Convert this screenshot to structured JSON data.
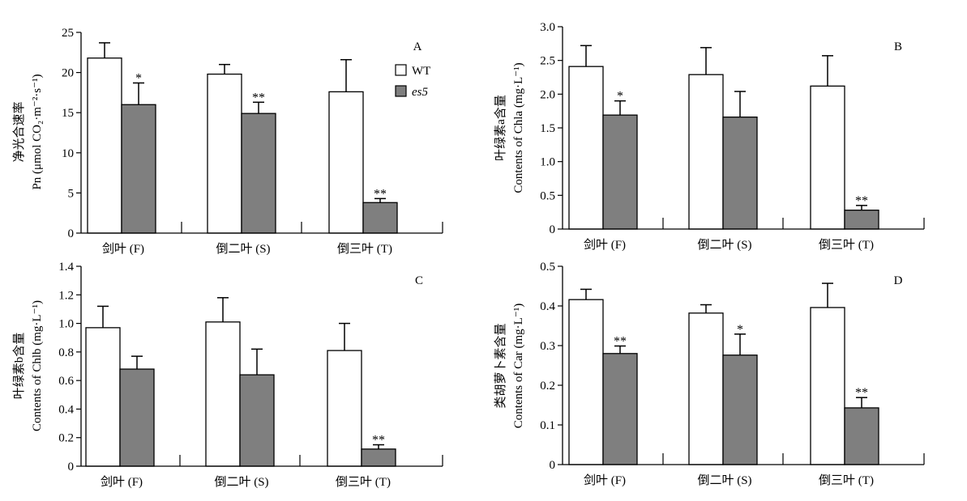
{
  "legend": {
    "wt": "WT",
    "es5": "es5"
  },
  "colors": {
    "wt_fill": "#ffffff",
    "es5_fill": "#7f7f7f",
    "axis": "#000000"
  },
  "chart_data": [
    {
      "id": "A",
      "type": "bar",
      "panel_label": "A",
      "ylabel_cn": "净光合速率",
      "ylabel_en": "Pn (μmol CO₂·m⁻²·s⁻¹)",
      "categories": [
        "剑叶 (F)",
        "倒二叶 (S)",
        "倒三叶 (T)"
      ],
      "ylim": [
        0,
        25
      ],
      "yticks": [
        0,
        5,
        10,
        15,
        20,
        25
      ],
      "ytick_labels": [
        "0",
        "5",
        "10",
        "15",
        "20",
        "25"
      ],
      "legend_shown": true,
      "legend_placement": "top-right",
      "series": [
        {
          "name": "WT",
          "values": [
            21.8,
            19.8,
            17.6
          ],
          "errors": [
            1.9,
            1.2,
            4.0
          ],
          "marks": [
            "",
            "",
            ""
          ]
        },
        {
          "name": "es5",
          "values": [
            16.0,
            14.9,
            3.8
          ],
          "errors": [
            2.7,
            1.4,
            0.5
          ],
          "marks": [
            "*",
            "**",
            "**"
          ]
        }
      ]
    },
    {
      "id": "B",
      "type": "bar",
      "panel_label": "B",
      "ylabel_cn": "叶绿素a含量",
      "ylabel_en": "Contents of Chla (mg·L⁻¹)",
      "categories": [
        "剑叶 (F)",
        "倒二叶 (S)",
        "倒三叶 (T)"
      ],
      "ylim": [
        0,
        3.0
      ],
      "yticks": [
        0,
        0.5,
        1.0,
        1.5,
        2.0,
        2.5,
        3.0
      ],
      "ytick_labels": [
        "0",
        "0.5",
        "1.0",
        "1.5",
        "2.0",
        "2.5",
        "3.0"
      ],
      "legend_shown": false,
      "series": [
        {
          "name": "WT",
          "values": [
            2.41,
            2.29,
            2.12
          ],
          "errors": [
            0.31,
            0.4,
            0.45
          ],
          "marks": [
            "",
            "",
            ""
          ]
        },
        {
          "name": "es5",
          "values": [
            1.69,
            1.66,
            0.28
          ],
          "errors": [
            0.21,
            0.38,
            0.07
          ],
          "marks": [
            "*",
            "",
            "**"
          ]
        }
      ]
    },
    {
      "id": "C",
      "type": "bar",
      "panel_label": "C",
      "ylabel_cn": "叶绿素b含量",
      "ylabel_en": "Contents of Chlb (mg·L⁻¹)",
      "categories": [
        "剑叶 (F)",
        "倒二叶 (S)",
        "倒三叶 (T)"
      ],
      "ylim": [
        0,
        1.4
      ],
      "yticks": [
        0,
        0.2,
        0.4,
        0.6,
        0.8,
        1.0,
        1.2,
        1.4
      ],
      "ytick_labels": [
        "0",
        "0.2",
        "0.4",
        "0.6",
        "0.8",
        "1.0",
        "1.2",
        "1.4"
      ],
      "legend_shown": false,
      "series": [
        {
          "name": "WT",
          "values": [
            0.97,
            1.01,
            0.81
          ],
          "errors": [
            0.15,
            0.17,
            0.19
          ],
          "marks": [
            "",
            "",
            ""
          ]
        },
        {
          "name": "es5",
          "values": [
            0.68,
            0.64,
            0.12
          ],
          "errors": [
            0.09,
            0.18,
            0.03
          ],
          "marks": [
            "",
            "",
            "**"
          ]
        }
      ]
    },
    {
      "id": "D",
      "type": "bar",
      "panel_label": "D",
      "ylabel_cn": "类胡萝卜素含量",
      "ylabel_en": "Contents of Car (mg·L⁻¹)",
      "categories": [
        "剑叶 (F)",
        "倒二叶 (S)",
        "倒三叶 (T)"
      ],
      "ylim": [
        0,
        0.5
      ],
      "yticks": [
        0,
        0.1,
        0.2,
        0.3,
        0.4,
        0.5
      ],
      "ytick_labels": [
        "0",
        "0.1",
        "0.2",
        "0.3",
        "0.4",
        "0.5"
      ],
      "legend_shown": false,
      "series": [
        {
          "name": "WT",
          "values": [
            0.416,
            0.382,
            0.396
          ],
          "errors": [
            0.026,
            0.021,
            0.061
          ],
          "marks": [
            "",
            "",
            ""
          ]
        },
        {
          "name": "es5",
          "values": [
            0.28,
            0.276,
            0.143
          ],
          "errors": [
            0.019,
            0.053,
            0.026
          ],
          "marks": [
            "**",
            "*",
            "**"
          ]
        }
      ]
    }
  ]
}
